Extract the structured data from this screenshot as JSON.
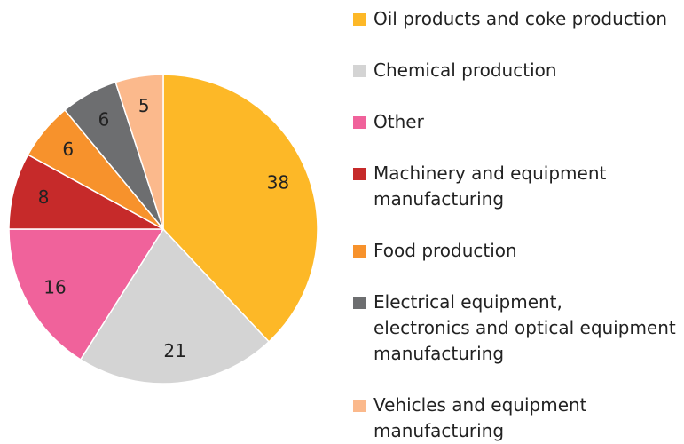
{
  "chart_data": {
    "type": "pie",
    "categories": [
      "Oil products and coke production",
      "Chemical production",
      "Other",
      "Machinery and equipment\nmanufacturing",
      "Food production",
      "Electrical equipment,\nelectronics and optical equipment\nmanufacturing",
      "Vehicles and equipment\nmanufacturing"
    ],
    "values": [
      38,
      21,
      16,
      8,
      6,
      6,
      5
    ],
    "colors": [
      "#fdb827",
      "#d4d4d4",
      "#f0629b",
      "#c62a2a",
      "#f7922c",
      "#6d6e70",
      "#fbb98c"
    ],
    "legend": "right"
  }
}
